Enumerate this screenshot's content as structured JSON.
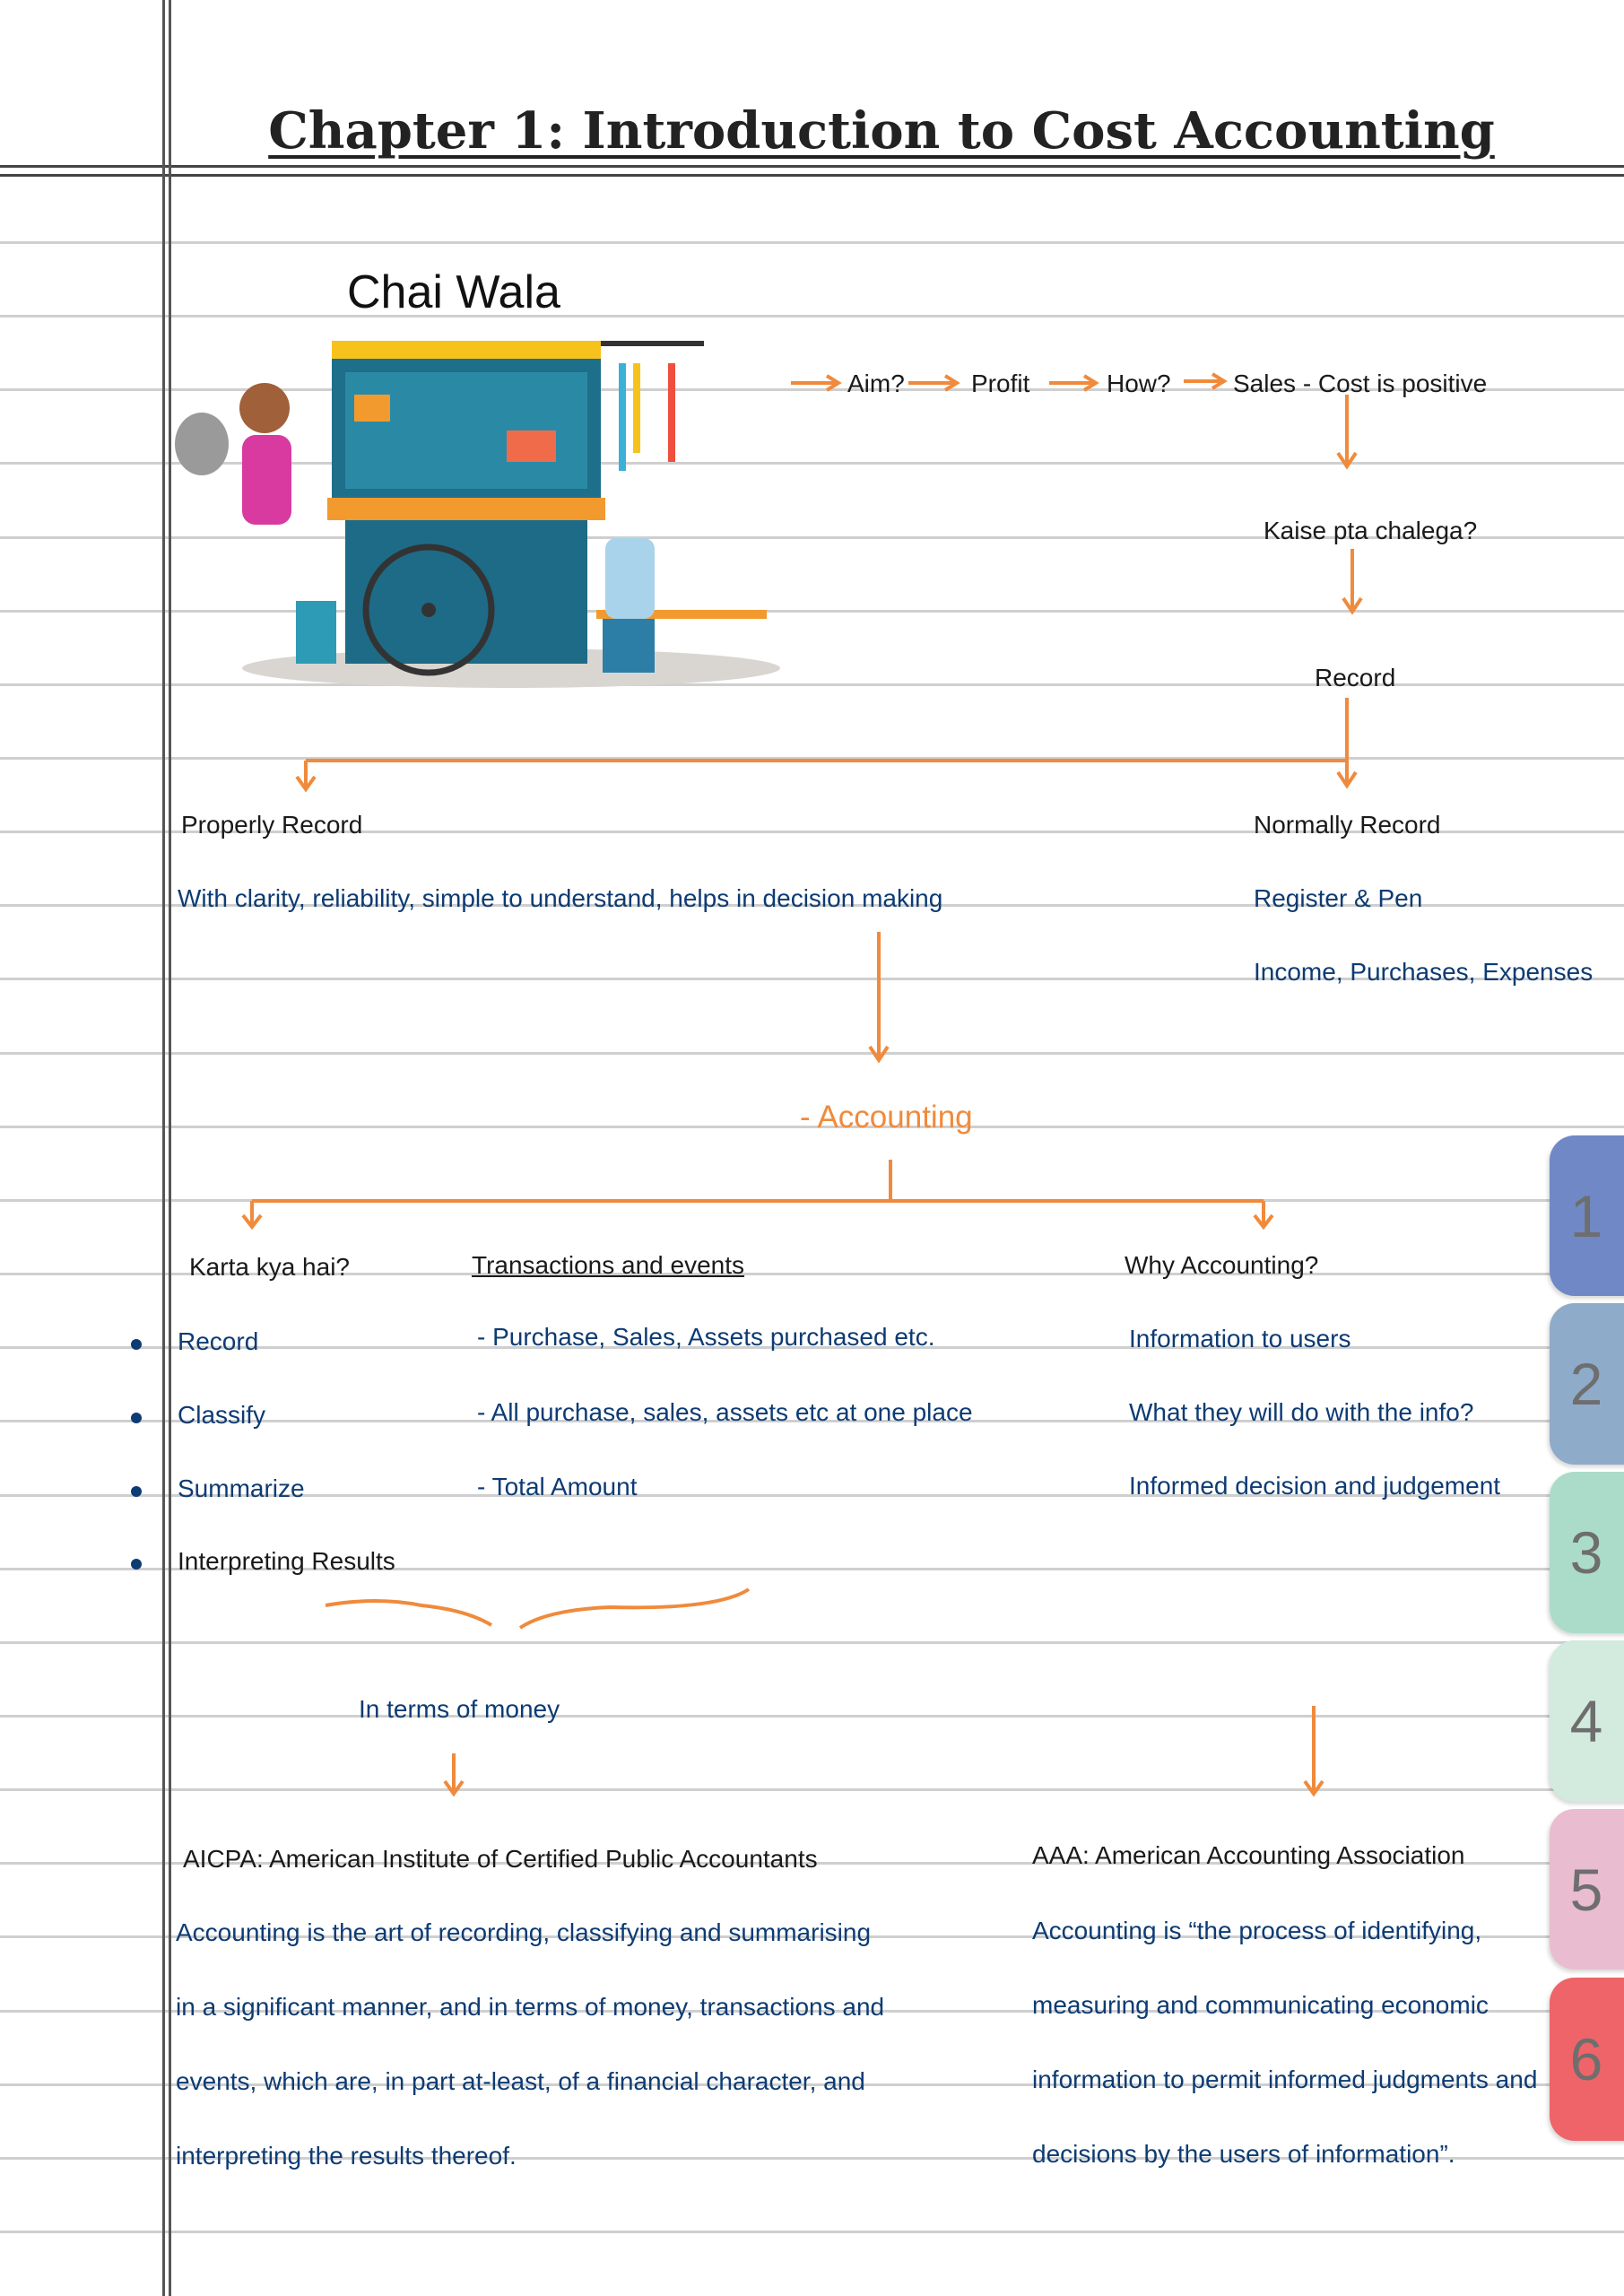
{
  "title": "Chapter 1:  Introduction to Cost Accounting",
  "illustration": {
    "heading": "Chai Wala",
    "image": "tea-stall-cart-illustration"
  },
  "flow": {
    "aim": "Aim?",
    "profit": "Profit",
    "how": "How?",
    "sales_cost": "Sales - Cost is positive",
    "kaise": "Kaise pta chalega?",
    "record": "Record"
  },
  "properly": {
    "heading": "Properly Record",
    "detail": "With clarity, reliability, simple to understand, helps in decision making"
  },
  "normally": {
    "heading": "Normally Record",
    "items": [
      "Register & Pen",
      "Income, Purchases, Expenses"
    ]
  },
  "accounting": "- Accounting",
  "karta": {
    "heading": "Karta kya hai?",
    "items": [
      "Record",
      "Classify",
      "Summarize",
      "Interpreting Results"
    ]
  },
  "transactions": {
    "heading": "Transactions and events",
    "items": [
      "- Purchase, Sales, Assets purchased etc.",
      "- All purchase, sales, assets etc at one place",
      "- Total Amount"
    ]
  },
  "why": {
    "heading": "Why Accounting?",
    "items": [
      "Information to users",
      "What they will do with the info?",
      "Informed decision and judgement"
    ]
  },
  "money": "In terms of money",
  "aicpa": {
    "heading": "AICPA: American Institute of Certified Public Accountants",
    "lines": [
      "Accounting is the art of recording, classifying and summarising",
      "in a significant manner, and in terms of money, transactions and",
      "events, which are, in part at-least, of a financial character, and",
      "interpreting the results thereof."
    ]
  },
  "aaa": {
    "heading": "AAA: American Accounting Association",
    "lines": [
      "Accounting is “the process of identifying,",
      "measuring and communicating economic",
      "information to permit informed judgments and",
      "decisions by the users of information”."
    ]
  },
  "tabs": [
    {
      "label": "1",
      "color": "#7088c6"
    },
    {
      "label": "2",
      "color": "#8eabc9"
    },
    {
      "label": "3",
      "color": "#abdcc9"
    },
    {
      "label": "4",
      "color": "#d3eadf"
    },
    {
      "label": "5",
      "color": "#e9bccf"
    },
    {
      "label": "6",
      "color": "#ee6468"
    }
  ],
  "colors": {
    "arrow": "#f08a3c",
    "ink_blue": "#0d3b73",
    "ink_black": "#1a1a1a"
  }
}
